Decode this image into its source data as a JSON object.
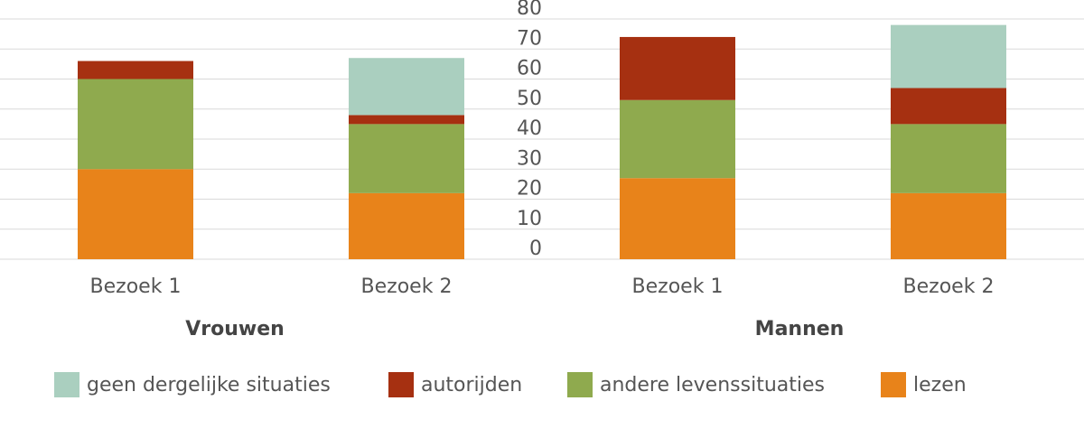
{
  "chart_data": {
    "type": "stacked_bar",
    "categories": [
      "Bezoek 1",
      "Bezoek 2",
      "Bezoek 1",
      "Bezoek 2"
    ],
    "groups": [
      "Vrouwen",
      "Mannen"
    ],
    "series": [
      {
        "name": "geen dergelijke situaties",
        "color": "#aacfbf",
        "values": [
          0,
          19,
          0,
          21
        ]
      },
      {
        "name": "autorijden",
        "color": "#a63011",
        "values": [
          6,
          3,
          21,
          12
        ]
      },
      {
        "name": "andere  levenssituaties",
        "color": "#8faa4e",
        "values": [
          30,
          23,
          26,
          23
        ]
      },
      {
        "name": "lezen",
        "color": "#e8831a",
        "values": [
          30,
          22,
          27,
          22
        ]
      }
    ],
    "ylim": [
      0,
      80
    ],
    "yticks": [
      0,
      10,
      20,
      30,
      40,
      50,
      60,
      70,
      80
    ],
    "grid": true
  }
}
